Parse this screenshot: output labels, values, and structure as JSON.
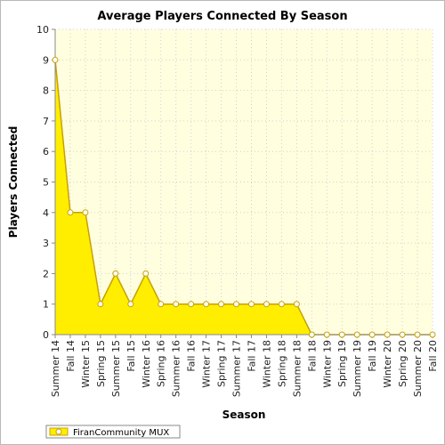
{
  "chart_data": {
    "type": "area",
    "title": "Average Players Connected By Season",
    "xlabel": "Season",
    "ylabel": "Players Connected",
    "ylim": [
      0,
      10
    ],
    "yticks": [
      0,
      1,
      2,
      3,
      4,
      5,
      6,
      7,
      8,
      9,
      10
    ],
    "grid": true,
    "legend_position": "bottom-left",
    "categories": [
      "Summer 14",
      "Fall 14",
      "Winter 15",
      "Spring 15",
      "Summer 15",
      "Fall 15",
      "Winter 16",
      "Spring 16",
      "Summer 16",
      "Fall 16",
      "Winter 17",
      "Spring 17",
      "Summer 17",
      "Fall 17",
      "Winter 18",
      "Spring 18",
      "Summer 18",
      "Fall 18",
      "Winter 19",
      "Spring 19",
      "Summer 19",
      "Fall 19",
      "Winter 20",
      "Spring 20",
      "Summer 20",
      "Fall 20"
    ],
    "series": [
      {
        "name": "FiranCommunity MUX",
        "color": "#ffee00",
        "line_color": "#c8a000",
        "values": [
          9,
          4,
          4,
          1,
          2,
          1,
          2,
          1,
          1,
          1,
          1,
          1,
          1,
          1,
          1,
          1,
          1,
          0,
          0,
          0,
          0,
          0,
          0,
          0,
          0,
          0
        ]
      }
    ],
    "plot_background": "#ffffe0"
  }
}
